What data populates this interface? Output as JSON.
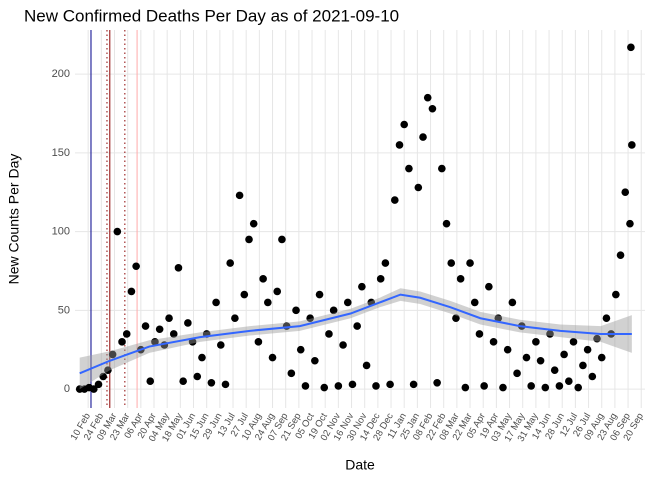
{
  "chart_data": {
    "type": "scatter",
    "title": "New Confirmed Deaths Per Day as of 2021-09-10",
    "x_label": "Date",
    "y_label": "New Counts Per Day",
    "color": "#000000",
    "grid": true,
    "xlim": [
      "2020-01-27",
      "2021-09-24"
    ],
    "ylim": [
      -12,
      228
    ],
    "yticks": [
      0,
      50,
      100,
      150,
      200
    ],
    "xticks": [
      {
        "value": "2020-02-10",
        "label": "10 Feb"
      },
      {
        "value": "2020-02-24",
        "label": "24 Feb"
      },
      {
        "value": "2020-03-09",
        "label": "09 Mar"
      },
      {
        "value": "2020-03-23",
        "label": "23 Mar"
      },
      {
        "value": "2020-04-06",
        "label": "06 Apr"
      },
      {
        "value": "2020-04-20",
        "label": "20 Apr"
      },
      {
        "value": "2020-05-04",
        "label": "04 May"
      },
      {
        "value": "2020-05-18",
        "label": "18 May"
      },
      {
        "value": "2020-06-01",
        "label": "01 Jun"
      },
      {
        "value": "2020-06-15",
        "label": "15 Jun"
      },
      {
        "value": "2020-06-29",
        "label": "29 Jun"
      },
      {
        "value": "2020-07-13",
        "label": "13 Jul"
      },
      {
        "value": "2020-07-27",
        "label": "27 Jul"
      },
      {
        "value": "2020-08-10",
        "label": "10 Aug"
      },
      {
        "value": "2020-08-24",
        "label": "24 Aug"
      },
      {
        "value": "2020-09-07",
        "label": "07 Sep"
      },
      {
        "value": "2020-09-21",
        "label": "21 Sep"
      },
      {
        "value": "2020-10-05",
        "label": "05 Oct"
      },
      {
        "value": "2020-10-19",
        "label": "19 Oct"
      },
      {
        "value": "2020-11-02",
        "label": "02 Nov"
      },
      {
        "value": "2020-11-16",
        "label": "16 Nov"
      },
      {
        "value": "2020-11-30",
        "label": "30 Nov"
      },
      {
        "value": "2020-12-14",
        "label": "14 Dec"
      },
      {
        "value": "2020-12-28",
        "label": "28 Dec"
      },
      {
        "value": "2021-01-11",
        "label": "11 Jan"
      },
      {
        "value": "2021-01-25",
        "label": "25 Jan"
      },
      {
        "value": "2021-02-08",
        "label": "08 Feb"
      },
      {
        "value": "2021-02-22",
        "label": "22 Feb"
      },
      {
        "value": "2021-03-08",
        "label": "08 Mar"
      },
      {
        "value": "2021-03-22",
        "label": "22 Mar"
      },
      {
        "value": "2021-04-05",
        "label": "05 Apr"
      },
      {
        "value": "2021-04-19",
        "label": "19 Apr"
      },
      {
        "value": "2021-05-03",
        "label": "03 May"
      },
      {
        "value": "2021-05-17",
        "label": "17 May"
      },
      {
        "value": "2021-05-31",
        "label": "31 May"
      },
      {
        "value": "2021-06-14",
        "label": "14 Jun"
      },
      {
        "value": "2021-06-28",
        "label": "28 Jun"
      },
      {
        "value": "2021-07-12",
        "label": "12 Jul"
      },
      {
        "value": "2021-07-26",
        "label": "26 Jul"
      },
      {
        "value": "2021-08-09",
        "label": "09 Aug"
      },
      {
        "value": "2021-08-23",
        "label": "23 Aug"
      },
      {
        "value": "2021-09-06",
        "label": "06 Sep"
      },
      {
        "value": "2021-09-20",
        "label": "20 Sep"
      }
    ],
    "x": [
      "2020-02-01",
      "2020-02-06",
      "2020-02-11",
      "2020-02-16",
      "2020-02-21",
      "2020-02-26",
      "2020-03-02",
      "2020-03-07",
      "2020-03-12",
      "2020-03-17",
      "2020-03-22",
      "2020-03-27",
      "2020-04-01",
      "2020-04-06",
      "2020-04-11",
      "2020-04-16",
      "2020-04-21",
      "2020-04-26",
      "2020-05-01",
      "2020-05-06",
      "2020-05-11",
      "2020-05-16",
      "2020-05-21",
      "2020-05-26",
      "2020-05-31",
      "2020-06-05",
      "2020-06-10",
      "2020-06-15",
      "2020-06-20",
      "2020-06-25",
      "2020-06-30",
      "2020-07-05",
      "2020-07-10",
      "2020-07-15",
      "2020-07-20",
      "2020-07-25",
      "2020-07-30",
      "2020-08-04",
      "2020-08-09",
      "2020-08-14",
      "2020-08-19",
      "2020-08-24",
      "2020-08-29",
      "2020-09-03",
      "2020-09-08",
      "2020-09-13",
      "2020-09-18",
      "2020-09-23",
      "2020-09-28",
      "2020-10-03",
      "2020-10-08",
      "2020-10-13",
      "2020-10-18",
      "2020-10-23",
      "2020-10-28",
      "2020-11-02",
      "2020-11-07",
      "2020-11-12",
      "2020-11-17",
      "2020-11-22",
      "2020-11-27",
      "2020-12-02",
      "2020-12-07",
      "2020-12-12",
      "2020-12-17",
      "2020-12-22",
      "2020-12-27",
      "2021-01-01",
      "2021-01-06",
      "2021-01-11",
      "2021-01-16",
      "2021-01-21",
      "2021-01-26",
      "2021-01-31",
      "2021-02-05",
      "2021-02-10",
      "2021-02-15",
      "2021-02-20",
      "2021-02-25",
      "2021-03-02",
      "2021-03-07",
      "2021-03-12",
      "2021-03-17",
      "2021-03-22",
      "2021-03-27",
      "2021-04-01",
      "2021-04-06",
      "2021-04-11",
      "2021-04-16",
      "2021-04-21",
      "2021-04-26",
      "2021-05-01",
      "2021-05-06",
      "2021-05-11",
      "2021-05-16",
      "2021-05-21",
      "2021-05-26",
      "2021-05-31",
      "2021-06-05",
      "2021-06-10",
      "2021-06-15",
      "2021-06-20",
      "2021-06-25",
      "2021-06-30",
      "2021-07-05",
      "2021-07-10",
      "2021-07-15",
      "2021-07-20",
      "2021-07-25",
      "2021-07-30",
      "2021-08-04",
      "2021-08-09",
      "2021-08-14",
      "2021-08-19",
      "2021-08-24",
      "2021-08-29",
      "2021-09-03",
      "2021-09-08",
      "2021-09-09",
      "2021-09-10"
    ],
    "values": [
      0,
      0,
      1,
      0,
      3,
      8,
      12,
      22,
      100,
      30,
      35,
      62,
      78,
      25,
      40,
      5,
      30,
      38,
      28,
      45,
      35,
      77,
      5,
      42,
      30,
      8,
      20,
      35,
      4,
      55,
      28,
      3,
      80,
      45,
      123,
      60,
      95,
      105,
      30,
      70,
      55,
      20,
      62,
      95,
      40,
      10,
      50,
      25,
      2,
      45,
      18,
      60,
      1,
      35,
      50,
      2,
      28,
      55,
      3,
      40,
      65,
      15,
      55,
      2,
      70,
      80,
      3,
      120,
      155,
      168,
      140,
      3,
      128,
      160,
      185,
      178,
      4,
      140,
      105,
      80,
      45,
      70,
      1,
      80,
      55,
      35,
      2,
      65,
      30,
      45,
      1,
      25,
      55,
      10,
      40,
      20,
      2,
      30,
      18,
      1,
      35,
      12,
      2,
      22,
      5,
      30,
      1,
      15,
      25,
      8,
      32,
      20,
      45,
      35,
      60,
      85,
      125,
      105,
      217,
      155
    ],
    "smooth": {
      "color": "#3366ff",
      "band_color": "#999999",
      "x": [
        "2020-02-01",
        "2020-03-04",
        "2020-04-15",
        "2020-06-08",
        "2020-07-31",
        "2020-09-22",
        "2020-11-15",
        "2020-12-16",
        "2021-01-07",
        "2021-01-28",
        "2021-03-01",
        "2021-04-02",
        "2021-05-14",
        "2021-06-26",
        "2021-08-08",
        "2021-09-10"
      ],
      "values": [
        10,
        18,
        27,
        33,
        37,
        40,
        48,
        55,
        60,
        58,
        52,
        45,
        40,
        37,
        35,
        35
      ],
      "lower": [
        0,
        12,
        23,
        30,
        34,
        37,
        45,
        52,
        56,
        54,
        48,
        41,
        36,
        33,
        30,
        23
      ],
      "upper": [
        20,
        24,
        31,
        36,
        40,
        43,
        51,
        58,
        64,
        62,
        56,
        49,
        44,
        41,
        40,
        47
      ]
    },
    "vlines": [
      {
        "x": "2020-02-13",
        "color": "#00008b",
        "dash": "solid"
      },
      {
        "x": "2020-03-01",
        "color": "#8b0000",
        "dash": "dotted"
      },
      {
        "x": "2020-03-04",
        "color": "#8b0000",
        "dash": "solid"
      },
      {
        "x": "2020-03-20",
        "color": "#8b0000",
        "dash": "dotted"
      },
      {
        "x": "2020-04-02",
        "color": "#ffaaaa",
        "dash": "solid"
      }
    ]
  }
}
